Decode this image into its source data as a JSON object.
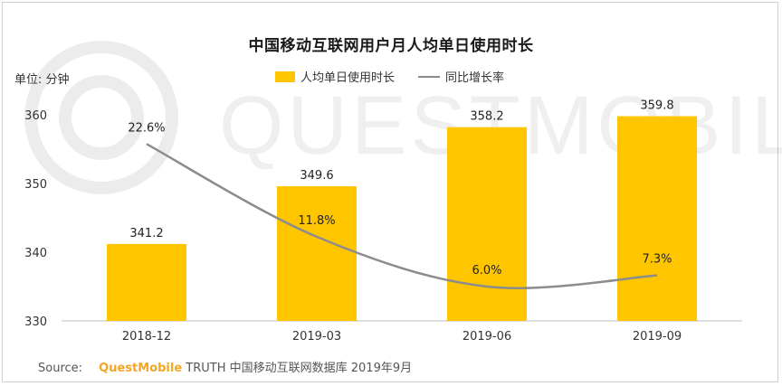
{
  "title": "中国移动互联网用户月人均单日使用时长",
  "unit_label": "单位: 分钟",
  "watermark_text": "QUESTMOBILE",
  "source": {
    "label": "Source:",
    "brand": "QuestMobile",
    "text": "TRUTH 中国移动互联网数据库 2019年9月"
  },
  "colors": {
    "bar": "#ffc600",
    "line": "#8c8c8c",
    "brand": "#f5a623"
  },
  "chart_data": {
    "type": "bar",
    "categories": [
      "2018-12",
      "2019-03",
      "2019-06",
      "2019-09"
    ],
    "series": [
      {
        "name": "人均单日使用时长",
        "type": "bar",
        "values": [
          341.2,
          349.6,
          358.2,
          359.8
        ],
        "labels": [
          "341.2",
          "349.6",
          "358.2",
          "359.8"
        ]
      },
      {
        "name": "同比增长率",
        "type": "line",
        "values": [
          22.6,
          11.8,
          6.0,
          7.3
        ],
        "labels": [
          "22.6%",
          "11.8%",
          "6.0%",
          "7.3%"
        ]
      }
    ],
    "ylim": [
      330,
      360
    ],
    "yticks": [
      "330",
      "340",
      "350",
      "360"
    ],
    "y2lim": [
      2,
      26
    ],
    "legend_position": "top-center",
    "grid": false
  }
}
